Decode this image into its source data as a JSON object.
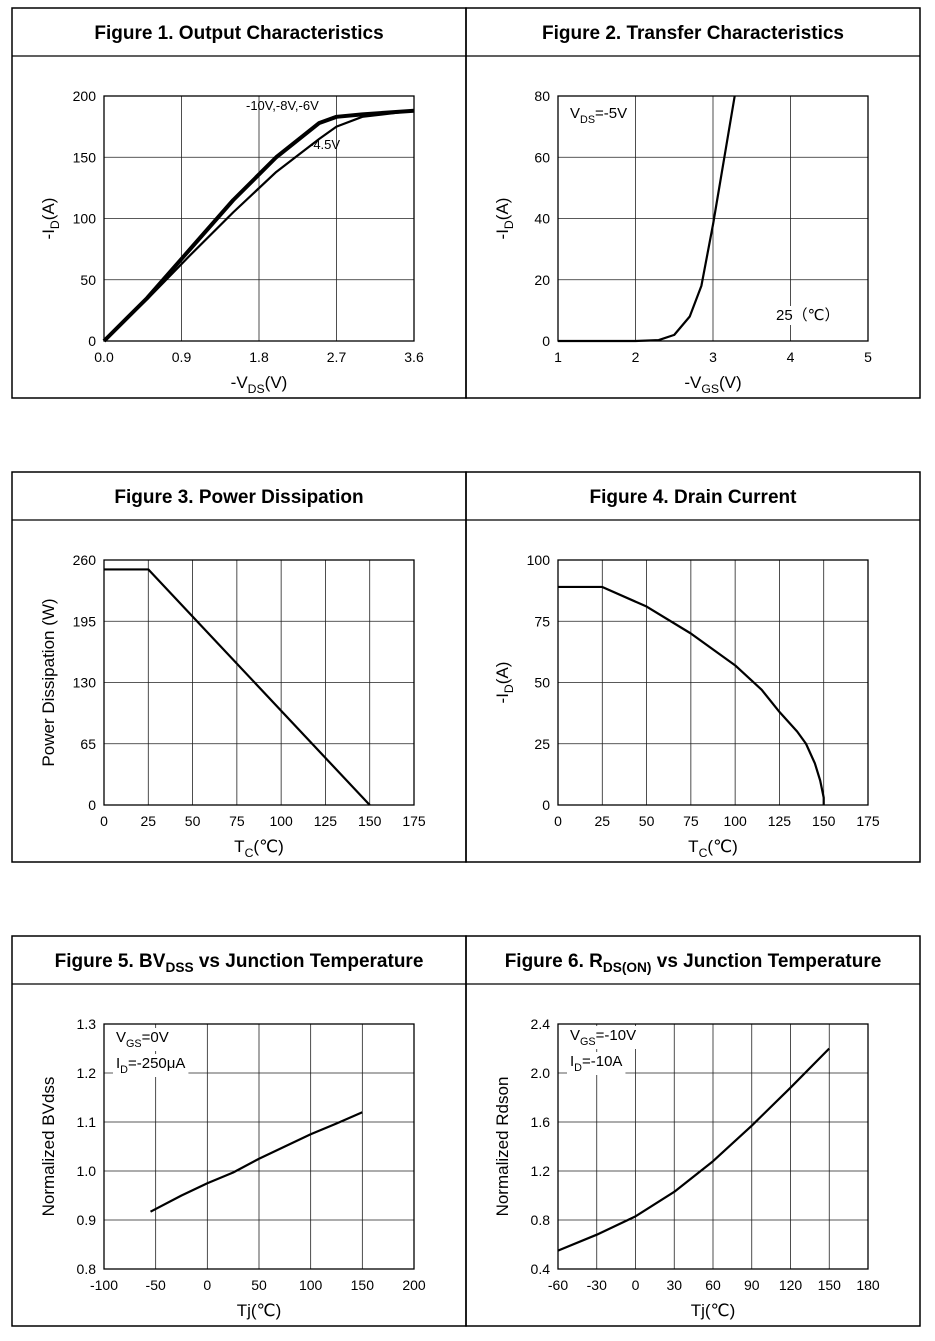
{
  "chart_data": [
    {
      "type": "line",
      "title": [
        "Figure 1. Output Characteristics"
      ],
      "xlabel": [
        "-V",
        {
          "sub": "DS"
        },
        "(V)"
      ],
      "ylabel": [
        "-I",
        {
          "sub": "D"
        },
        "(A)"
      ],
      "xlim": [
        0,
        3.6
      ],
      "xticks": [
        {
          "value": 0,
          "label": "0.0"
        },
        0.9,
        1.8,
        2.7,
        3.6
      ],
      "ylim": [
        0,
        200
      ],
      "yticks": [
        0,
        50,
        100,
        150,
        200
      ],
      "grid": true,
      "x": [
        0,
        0.5,
        1.0,
        1.5,
        2.0,
        2.5,
        2.7,
        3.0,
        3.6
      ],
      "series": [
        {
          "name": "-10V,-8V,-6V",
          "color": "#000000",
          "values": [
            0,
            35,
            75,
            115,
            150,
            178,
            183,
            185,
            188
          ]
        },
        {
          "name": "-4.5V",
          "color": "#000000",
          "values": [
            0,
            34,
            70,
            105,
            138,
            165,
            175,
            183,
            188
          ]
        }
      ],
      "annotations": []
    },
    {
      "type": "line",
      "title": [
        "Figure 2. Transfer Characteristics"
      ],
      "xlabel": [
        "-V",
        {
          "sub": "GS"
        },
        "(V)"
      ],
      "ylabel": [
        "-I",
        {
          "sub": "D"
        },
        "(A)"
      ],
      "xlim": [
        1,
        5
      ],
      "xticks": [
        1,
        2,
        3,
        4,
        5
      ],
      "ylim": [
        0,
        80
      ],
      "yticks": [
        0,
        20,
        40,
        60,
        80
      ],
      "grid": true,
      "x": [
        1,
        2,
        2.3,
        2.5,
        2.7,
        2.85,
        3.0,
        3.1,
        3.2,
        3.28
      ],
      "values": [
        0,
        0,
        0.3,
        2,
        8,
        18,
        38,
        53,
        68,
        80
      ],
      "color": "#000000",
      "annotations": [
        [
          "V",
          {
            "sub": "DS"
          },
          "=-5V"
        ],
        [
          "25（℃）"
        ]
      ]
    },
    {
      "type": "line",
      "title": [
        "Figure 3. Power Dissipation"
      ],
      "xlabel": [
        "T",
        {
          "sub": "C"
        },
        "(℃)"
      ],
      "ylabel": [
        "Power Dissipation (W)"
      ],
      "xlim": [
        0,
        175
      ],
      "xticks": [
        0,
        25,
        50,
        75,
        100,
        125,
        150,
        175
      ],
      "ylim": [
        0,
        260
      ],
      "yticks": [
        0,
        65,
        130,
        195,
        260
      ],
      "grid": true,
      "x": [
        0,
        25,
        150
      ],
      "values": [
        250,
        250,
        0
      ],
      "color": "#000000",
      "annotations": []
    },
    {
      "type": "line",
      "title": [
        "Figure 4. Drain Current"
      ],
      "xlabel": [
        "T",
        {
          "sub": "C"
        },
        "(℃)"
      ],
      "ylabel": [
        "-I",
        {
          "sub": "D"
        },
        "(A)"
      ],
      "xlim": [
        0,
        175
      ],
      "xticks": [
        0,
        25,
        50,
        75,
        100,
        125,
        150,
        175
      ],
      "ylim": [
        0,
        100
      ],
      "yticks": [
        0,
        25,
        50,
        75,
        100
      ],
      "grid": true,
      "x": [
        0,
        25,
        50,
        75,
        100,
        115,
        125,
        135,
        140,
        145,
        148,
        150,
        150
      ],
      "values": [
        89,
        89,
        81,
        70,
        57,
        47,
        38,
        30,
        25,
        17,
        10,
        3,
        0
      ],
      "color": "#000000",
      "annotations": []
    },
    {
      "type": "line",
      "title": [
        "Figure 5. BV",
        {
          "sub": "DSS"
        },
        " vs Junction Temperature"
      ],
      "xlabel": [
        "Tj(℃)"
      ],
      "ylabel": [
        "Normalized  BVdss"
      ],
      "xlim": [
        -100,
        200
      ],
      "xticks": [
        -100,
        -50,
        0,
        50,
        100,
        150,
        200
      ],
      "ylim": [
        0.8,
        1.3
      ],
      "yticks": [
        0.8,
        0.9,
        {
          "value": 1.0,
          "label": "1.0"
        },
        1.1,
        1.2,
        1.3
      ],
      "grid": true,
      "x": [
        -55,
        -25,
        0,
        25,
        50,
        75,
        100,
        125,
        150
      ],
      "values": [
        0.917,
        0.95,
        0.975,
        0.997,
        1.025,
        1.05,
        1.075,
        1.097,
        1.12
      ],
      "color": "#000000",
      "annotations": [
        [
          "V",
          {
            "sub": "GS"
          },
          "=0V"
        ],
        [
          "I",
          {
            "sub": "D"
          },
          "=-250μA"
        ]
      ]
    },
    {
      "type": "line",
      "title": [
        "Figure 6. R",
        {
          "sub": "DS(ON)"
        },
        " vs Junction Temperature"
      ],
      "xlabel": [
        "Tj(℃)"
      ],
      "ylabel": [
        "Normalized  Rdson"
      ],
      "xlim": [
        -60,
        180
      ],
      "xticks": [
        -60,
        -30,
        0,
        30,
        60,
        90,
        120,
        150,
        180
      ],
      "ylim": [
        0.4,
        2.4
      ],
      "yticks": [
        0.4,
        0.8,
        1.2,
        1.6,
        {
          "value": 2.0,
          "label": "2.0"
        },
        2.4
      ],
      "grid": true,
      "x": [
        -60,
        -30,
        0,
        30,
        60,
        90,
        120,
        150
      ],
      "values": [
        0.55,
        0.68,
        0.83,
        1.03,
        1.28,
        1.57,
        1.88,
        2.2
      ],
      "color": "#000000",
      "annotations": [
        [
          "V",
          {
            "sub": "GS"
          },
          "=-10V"
        ],
        [
          "I",
          {
            "sub": "D"
          },
          "=-10A"
        ]
      ]
    }
  ]
}
